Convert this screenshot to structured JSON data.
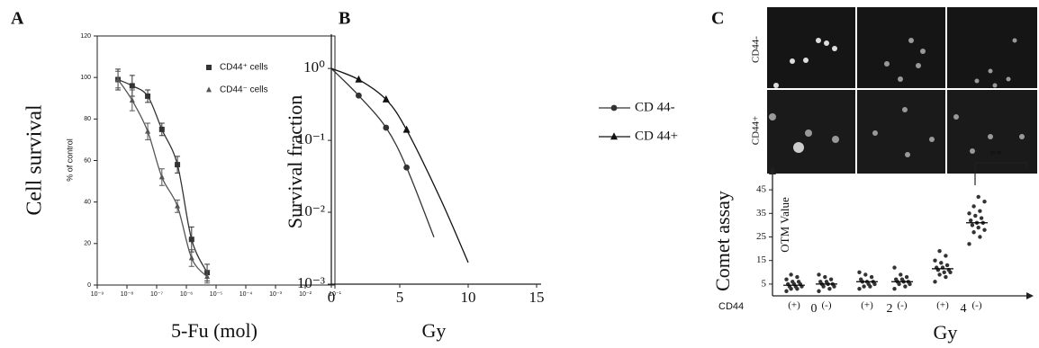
{
  "chart_data": [
    {
      "type": "line",
      "panel": "A",
      "xlabel": "5-Fu (mol)",
      "ylabel": "Cell survival",
      "ylabel_sub": "% of control",
      "xlog": true,
      "xlim": [
        1e-09,
        0.1
      ],
      "xticks": [
        {
          "value": 1e-09,
          "label": "10⁻⁹"
        },
        {
          "value": 1e-08,
          "label": "10⁻⁸"
        },
        {
          "value": 1e-07,
          "label": "10⁻⁷"
        },
        {
          "value": 1e-06,
          "label": "10⁻⁶"
        },
        {
          "value": 1e-05,
          "label": "10⁻⁵"
        },
        {
          "value": 0.0001,
          "label": "10⁻⁴"
        },
        {
          "value": 0.001,
          "label": "10⁻³"
        },
        {
          "value": 0.01,
          "label": "10⁻²"
        },
        {
          "value": 0.1,
          "label": "10⁻¹"
        }
      ],
      "ylim": [
        0,
        120
      ],
      "yticks": [
        0,
        20,
        40,
        60,
        80,
        100,
        120
      ],
      "frame": true,
      "legend": "upper right",
      "series": [
        {
          "name": "CD44⁺ cells",
          "marker": "square",
          "color": "#333333",
          "x": [
            5e-09,
            1.5e-08,
            5e-08,
            1.5e-07,
            5e-07,
            1.5e-06,
            5e-06
          ],
          "values": [
            99,
            96,
            91,
            75,
            58,
            22,
            6
          ],
          "errors": [
            5,
            5,
            3,
            3,
            4,
            6,
            4
          ]
        },
        {
          "name": "CD44⁻ cells",
          "marker": "triangle",
          "color": "#555555",
          "x": [
            5e-09,
            1.5e-08,
            5e-08,
            1.5e-07,
            5e-07,
            1.5e-06,
            5e-06
          ],
          "values": [
            99,
            89,
            74,
            52,
            38,
            13,
            4
          ],
          "errors": [
            4,
            5,
            4,
            4,
            3,
            4,
            3
          ]
        }
      ]
    },
    {
      "type": "line",
      "panel": "B",
      "xlabel": "Gy",
      "ylabel": "Survival fraction",
      "xlim": [
        0,
        15
      ],
      "xticks": [
        0,
        5,
        10,
        15
      ],
      "ylog": true,
      "ylim": [
        0.001,
        3
      ],
      "yticks": [
        {
          "value": 1,
          "label": "10⁰"
        },
        {
          "value": 0.1,
          "label": "10⁻¹"
        },
        {
          "value": 0.01,
          "label": "10⁻²"
        },
        {
          "value": 0.001,
          "label": "10⁻³"
        }
      ],
      "frame": false,
      "legend": "right",
      "series": [
        {
          "name": "CD 44-",
          "marker": "circle",
          "color": "#333333",
          "x": [
            2,
            4,
            5.5
          ],
          "values": [
            0.42,
            0.15,
            0.042
          ],
          "curve_x": [
            0,
            2,
            4,
            5.5,
            7.5
          ],
          "curve_values": [
            1,
            0.42,
            0.15,
            0.042,
            0.0045
          ]
        },
        {
          "name": "CD 44+",
          "marker": "triangle",
          "color": "#111111",
          "x": [
            2,
            4,
            5.5
          ],
          "values": [
            0.7,
            0.37,
            0.14
          ],
          "curve_x": [
            0,
            2,
            4,
            5.5,
            8,
            10
          ],
          "curve_values": [
            1,
            0.7,
            0.37,
            0.14,
            0.015,
            0.002
          ]
        }
      ]
    },
    {
      "type": "strip",
      "panel": "C",
      "xlabel": "Gy",
      "ylabel": "Comet assay",
      "ylabel_sub": "OTM Value",
      "image_rows": [
        "CD44-",
        "CD44+"
      ],
      "group_label": "CD44",
      "categories": [
        "(+)",
        "(-)",
        "(+)",
        "(-)",
        "(+)",
        "(-)"
      ],
      "groups": [
        "0",
        "2",
        "4"
      ],
      "ylim": [
        0,
        50
      ],
      "yticks": [
        5,
        15,
        25,
        35,
        45
      ],
      "color": "#333333",
      "annotation": "**",
      "points": [
        [
          2,
          3,
          3,
          4,
          4,
          4,
          5,
          5,
          5,
          6,
          6,
          7,
          8,
          9
        ],
        [
          2,
          3,
          4,
          4,
          5,
          5,
          5,
          6,
          6,
          7,
          8,
          9
        ],
        [
          3,
          4,
          4,
          5,
          5,
          6,
          6,
          6,
          7,
          8,
          9,
          10
        ],
        [
          3,
          4,
          5,
          5,
          6,
          6,
          6,
          7,
          7,
          8,
          9,
          12
        ],
        [
          6,
          8,
          9,
          10,
          10,
          11,
          11,
          12,
          12,
          13,
          14,
          15,
          17,
          19
        ],
        [
          22,
          25,
          27,
          28,
          29,
          30,
          31,
          31,
          32,
          33,
          34,
          35,
          36,
          38,
          40,
          42
        ]
      ],
      "means": [
        4.5,
        5,
        6,
        6,
        11.5,
        31
      ]
    }
  ]
}
